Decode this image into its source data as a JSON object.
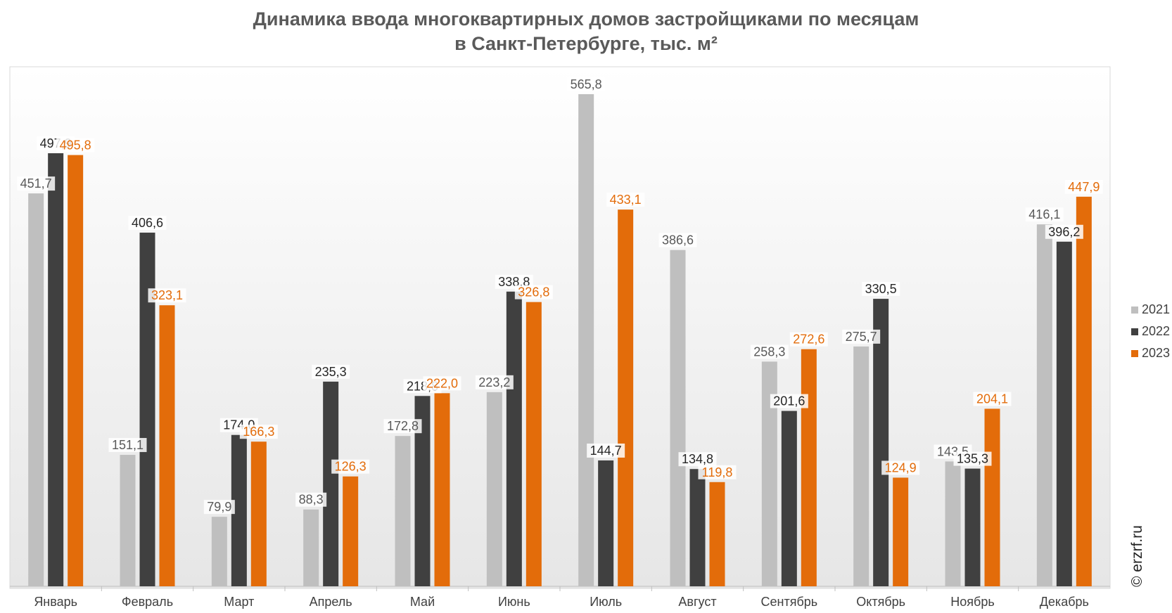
{
  "watermark": "© erzrf.ru",
  "colors": {
    "2021": "#bfbfbf",
    "2022": "#404040",
    "2023": "#e36c0a"
  },
  "chart_data": {
    "type": "bar",
    "title_lines": [
      "Динамика ввода многоквартирных домов застройщиками по месяцам",
      "в Санкт-Петербурге, тыс. м²"
    ],
    "categories": [
      "Январь",
      "Февраль",
      "Март",
      "Апрель",
      "Май",
      "Июнь",
      "Июль",
      "Август",
      "Сентябрь",
      "Октябрь",
      "Ноябрь",
      "Декабрь"
    ],
    "series": [
      {
        "name": "2021",
        "values": [
          451.7,
          151.1,
          79.9,
          88.3,
          172.8,
          223.2,
          565.8,
          386.6,
          258.3,
          275.7,
          143.5,
          416.1
        ],
        "labels": [
          "451,7",
          "151,1",
          "79,9",
          "88,3",
          "172,8",
          "223,2",
          "565,8",
          "386,6",
          "258,3",
          "275,7",
          "143,5",
          "416,1"
        ]
      },
      {
        "name": "2022",
        "values": [
          497.9,
          406.6,
          174.0,
          235.3,
          218.8,
          338.8,
          144.7,
          134.8,
          201.6,
          330.5,
          135.3,
          396.2
        ],
        "labels": [
          "497,9",
          "406,6",
          "174,0",
          "235,3",
          "218,8",
          "338,8",
          "144,7",
          "134,8",
          "201,6",
          "330,5",
          "135,3",
          "396,2"
        ]
      },
      {
        "name": "2023",
        "values": [
          495.8,
          323.1,
          166.3,
          126.3,
          222.0,
          326.8,
          433.1,
          119.8,
          272.6,
          124.9,
          204.1,
          447.9
        ],
        "labels": [
          "495,8",
          "323,1",
          "166,3",
          "126,3",
          "222,0",
          "326,8",
          "433,1",
          "119,8",
          "272,6",
          "124,9",
          "204,1",
          "447,9"
        ]
      }
    ],
    "ylim": [
      0,
      600
    ],
    "grid": false,
    "legend": "right"
  }
}
